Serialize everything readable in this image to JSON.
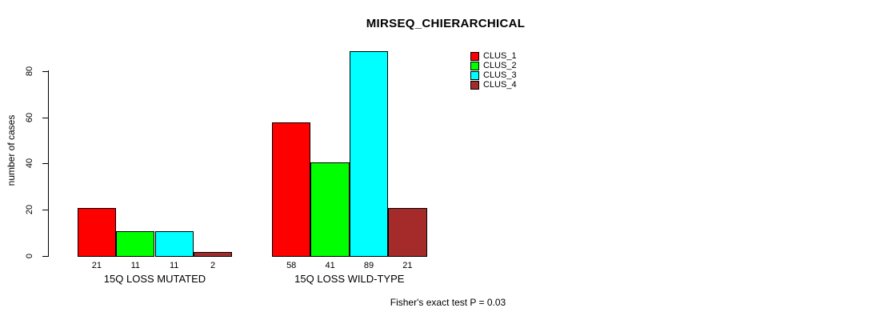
{
  "chart_data": {
    "type": "bar",
    "title": "MIRSEQ_CHIERARCHICAL",
    "ylabel": "number of cases",
    "xlabel": "",
    "ylim": [
      0,
      80
    ],
    "yticks": [
      0,
      20,
      40,
      60,
      80
    ],
    "grid": false,
    "legend_position": "top-right",
    "categories": [
      "15Q LOSS MUTATED",
      "15Q LOSS WILD-TYPE"
    ],
    "series": [
      {
        "name": "CLUS_1",
        "color": "#FF0000",
        "values": [
          21,
          58
        ]
      },
      {
        "name": "CLUS_2",
        "color": "#00FF00",
        "values": [
          11,
          41
        ]
      },
      {
        "name": "CLUS_3",
        "color": "#00FFFF",
        "values": [
          11,
          89
        ]
      },
      {
        "name": "CLUS_4",
        "color": "#A52A2A",
        "values": [
          2,
          21
        ]
      }
    ],
    "bar_value_labels": true,
    "annotation": "Fisher's exact test P = 0.03"
  },
  "colors": {
    "background": "#FFFFFF",
    "axis": "#000000",
    "bar_border": "#000000"
  }
}
